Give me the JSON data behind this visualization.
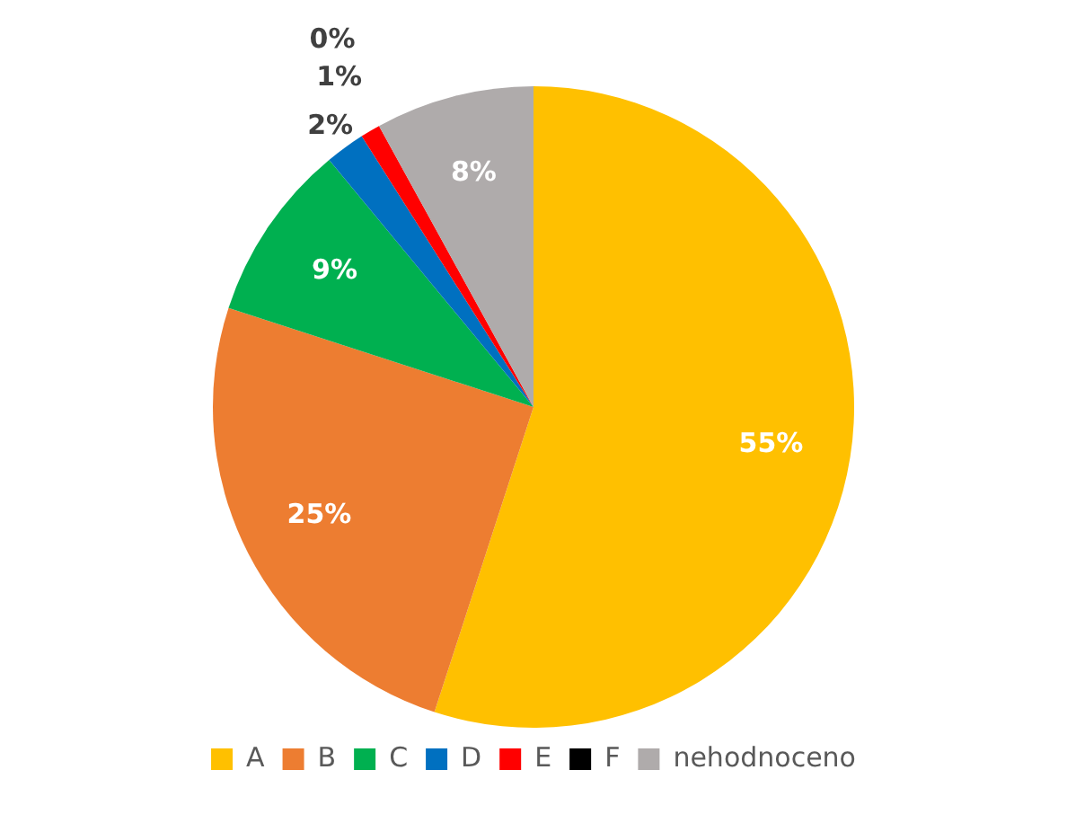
{
  "chart_data": {
    "type": "pie",
    "categories": [
      "A",
      "B",
      "C",
      "D",
      "E",
      "F",
      "nehodnoceno"
    ],
    "values": [
      55,
      25,
      9,
      2,
      1,
      0,
      8
    ],
    "colors": [
      "#ffc000",
      "#ed7d31",
      "#00b050",
      "#0070c0",
      "#ff0000",
      "#000000",
      "#afabab"
    ],
    "value_labels": [
      "55%",
      "25%",
      "9%",
      "2%",
      "1%",
      "0%",
      "8%"
    ],
    "legend": "bottom"
  }
}
